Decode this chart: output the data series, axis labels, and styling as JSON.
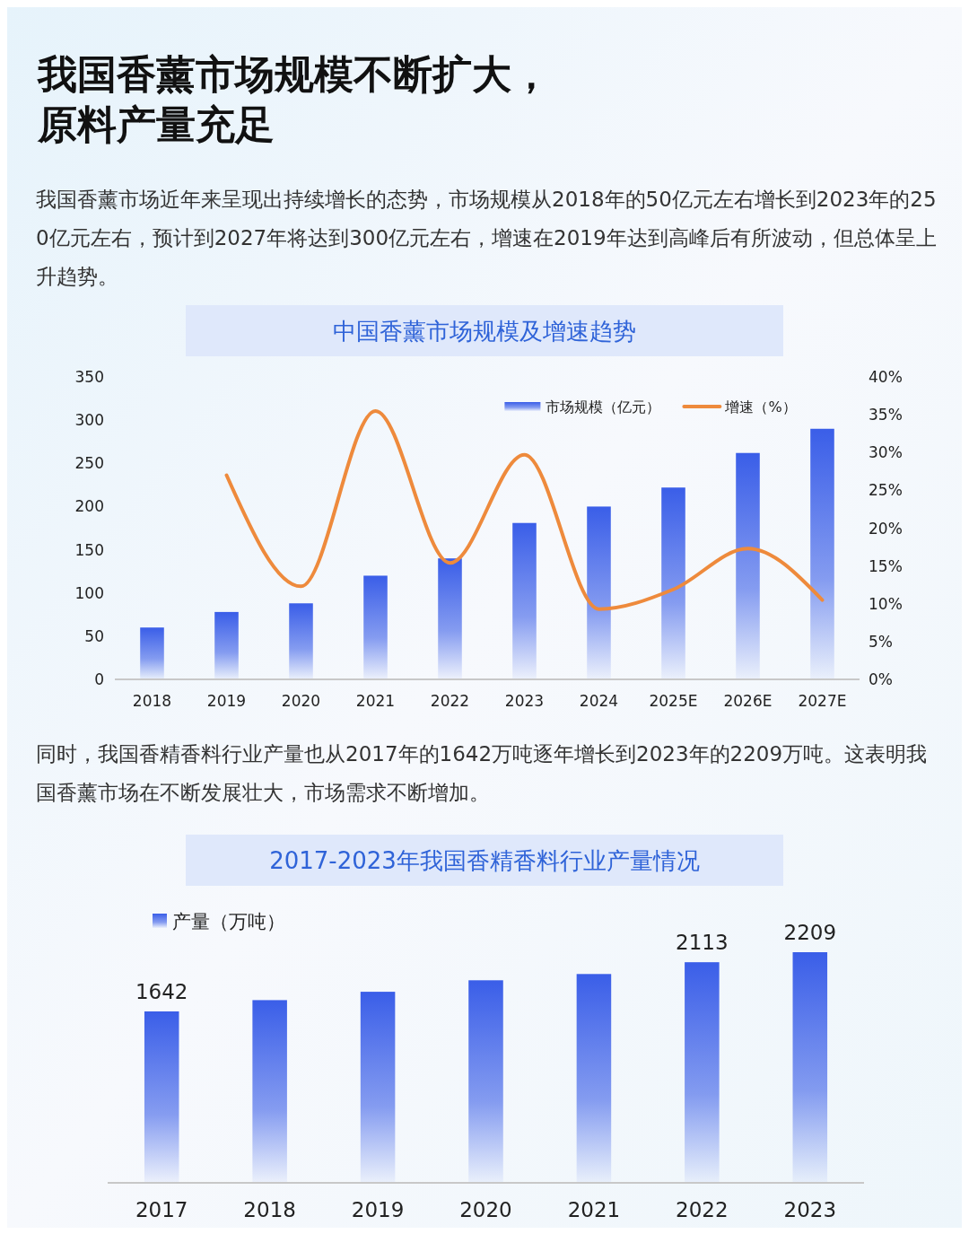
{
  "chart_data": [
    {
      "type": "other",
      "title": "我国香薰市场规模不断扩大，原料产量充足",
      "annotations": [
        "我国香薰市场近年来呈现出持续增长的态势，市场规模从2018年的50亿元左右增长到2023年的250亿元左右，预计到2027年将达到300亿元左右，增速在2019年达到高峰后有所波动，但总体呈上升趋势。"
      ]
    },
    {
      "type": "bar",
      "title": "中国香薰市场规模及增速趋势",
      "categories": [
        "2018",
        "2019",
        "2020",
        "2021",
        "2022",
        "2023",
        "2024",
        "2025E",
        "2026E",
        "2027E"
      ],
      "series": [
        {
          "name": "市场规模（亿元）",
          "type": "bar",
          "color": "#3a5ee8",
          "values": [
            60,
            78,
            88,
            120,
            140,
            181,
            200,
            222,
            262,
            290
          ]
        },
        {
          "name": "增速（%）",
          "type": "line",
          "axis": "y2",
          "color": "#ee8a3c",
          "values": [
            null,
            27,
            12.3,
            35.5,
            15.4,
            29.7,
            9.3,
            11.9,
            17.3,
            10.5
          ]
        }
      ],
      "ylim": [
        0,
        350
      ],
      "yticks": [
        0,
        50,
        100,
        150,
        200,
        250,
        300,
        350
      ],
      "y2lim": [
        0,
        40
      ],
      "y2ticks": [
        {
          "value": 0,
          "label": "0%"
        },
        {
          "value": 5,
          "label": "5%"
        },
        {
          "value": 10,
          "label": "10%"
        },
        {
          "value": 15,
          "label": "15%"
        },
        {
          "value": 20,
          "label": "20%"
        },
        {
          "value": 25,
          "label": "25%"
        },
        {
          "value": 30,
          "label": "30%"
        },
        {
          "value": 35,
          "label": "35%"
        },
        {
          "value": 40,
          "label": "40%"
        }
      ],
      "legend": "top right"
    },
    {
      "type": "bar",
      "title": "2017-2023年我国香精香料行业产量情况",
      "annotations": [
        "同时，我国香精香料行业产量也从2017年的1642万吨逐年增长到2023年的2209万吨。这表明我国香薰市场在不断发展壮大，市场需求不断增加。"
      ],
      "categories": [
        "2017",
        "2018",
        "2019",
        "2020",
        "2021",
        "2022",
        "2023"
      ],
      "series": [
        {
          "name": "产量（万吨）",
          "type": "bar",
          "color": "#3a5ee8",
          "values": [
            1642,
            1750,
            1830,
            1940,
            2000,
            2113,
            2209
          ],
          "value_labels": [
            "1642",
            null,
            null,
            null,
            null,
            "2113",
            "2209"
          ]
        }
      ],
      "tick_labels": "x",
      "legend": "top left"
    }
  ]
}
